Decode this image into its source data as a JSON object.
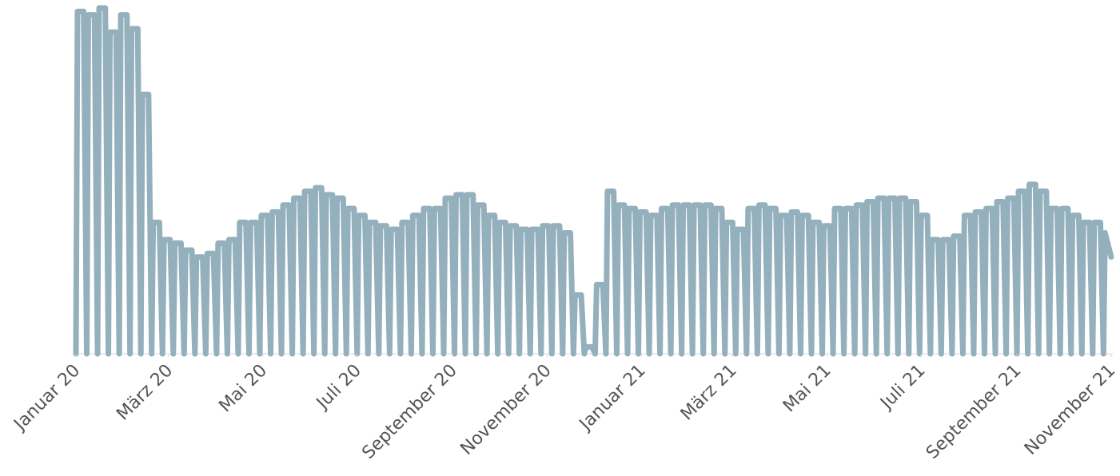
{
  "chart_data": {
    "type": "line",
    "x": [
      0,
      1,
      5,
      7,
      8,
      12,
      14,
      15,
      19,
      21,
      22,
      26,
      28,
      29,
      33,
      35,
      36,
      40,
      42,
      43,
      47,
      49,
      50,
      54,
      56,
      57,
      61,
      63,
      64,
      68,
      70,
      71,
      75,
      77,
      78,
      82,
      84,
      85,
      89,
      91,
      92,
      96,
      98,
      99,
      103,
      105,
      106,
      110,
      112,
      113,
      117,
      119,
      120,
      124,
      126,
      127,
      131,
      133,
      134,
      138,
      140,
      141,
      145,
      147,
      148,
      152,
      154,
      155,
      159,
      161,
      162,
      166,
      168,
      169,
      173,
      175,
      176,
      180,
      182,
      183,
      187,
      189,
      190,
      194,
      196,
      197,
      201,
      203,
      204,
      208,
      210,
      211,
      215,
      217,
      218,
      222,
      224,
      225,
      229,
      231,
      232,
      236,
      238,
      239,
      243,
      245,
      246,
      250,
      252,
      253,
      257,
      259,
      260,
      264,
      266,
      267,
      271,
      273,
      274,
      278,
      280,
      281,
      285,
      287,
      288,
      292,
      294,
      295,
      299,
      301,
      302,
      306,
      308,
      309,
      313,
      315,
      316,
      320,
      322,
      323,
      327,
      329,
      330,
      334,
      336,
      337,
      341,
      343,
      344,
      348,
      350,
      351,
      355,
      357,
      358,
      362,
      364,
      365,
      369,
      371,
      372,
      376,
      378,
      379,
      383,
      385,
      386,
      390,
      392,
      393,
      397,
      399,
      400,
      404,
      406,
      407,
      411,
      413,
      414,
      418,
      420,
      421,
      425,
      427,
      428,
      432,
      434,
      435,
      439,
      441,
      442,
      446,
      448,
      449,
      453,
      455,
      456,
      460,
      462,
      463,
      467,
      469,
      470,
      474,
      476,
      477,
      481,
      483,
      484,
      488,
      490,
      491,
      495,
      497,
      498,
      502,
      504,
      505,
      509,
      511,
      512,
      516,
      518,
      519,
      523,
      525,
      526,
      530,
      532,
      533,
      537,
      539,
      540,
      544,
      546,
      547,
      551,
      553,
      554,
      558,
      560,
      561,
      565,
      567,
      568,
      572,
      574,
      575,
      579,
      581,
      582,
      586,
      588,
      589,
      593,
      595,
      596,
      600,
      602,
      603,
      607,
      609,
      610,
      614,
      616,
      617,
      621,
      623,
      624,
      628,
      630,
      631,
      635,
      637,
      638,
      642,
      644,
      645,
      649,
      651,
      652,
      656,
      658,
      659,
      663,
      665,
      666,
      670
    ],
    "series": [
      {
        "color": "#94b0bd",
        "values": [
          0,
          99,
          99,
          0,
          98,
          98,
          0,
          100,
          100,
          0,
          93,
          93,
          0,
          98,
          98,
          0,
          94,
          94,
          0,
          75,
          75,
          0,
          38,
          38,
          0,
          33,
          33,
          0,
          32,
          32,
          0,
          30,
          30,
          0,
          28,
          28,
          0,
          29,
          29,
          0,
          32,
          32,
          0,
          33,
          33,
          0,
          38,
          38,
          0,
          38,
          38,
          0,
          40,
          40,
          0,
          41,
          41,
          0,
          43,
          43,
          0,
          45,
          45,
          0,
          47,
          47,
          0,
          48,
          48,
          0,
          46,
          46,
          0,
          45,
          45,
          0,
          42,
          42,
          0,
          40,
          40,
          0,
          38,
          38,
          0,
          37,
          37,
          0,
          36,
          36,
          0,
          38,
          38,
          0,
          40,
          40,
          0,
          42,
          42,
          0,
          42,
          42,
          0,
          45,
          45,
          0,
          46,
          46,
          0,
          46,
          46,
          0,
          43,
          43,
          0,
          40,
          40,
          0,
          38,
          38,
          0,
          37,
          37,
          0,
          36,
          36,
          0,
          36,
          36,
          0,
          37,
          37,
          0,
          37,
          37,
          0,
          35,
          35,
          0,
          17,
          17,
          0,
          2,
          2,
          0,
          20,
          20,
          0,
          47,
          47,
          0,
          43,
          43,
          0,
          42,
          42,
          0,
          41,
          41,
          0,
          40,
          40,
          0,
          42,
          42,
          0,
          43,
          43,
          0,
          43,
          43,
          0,
          43,
          43,
          0,
          43,
          43,
          0,
          42,
          42,
          0,
          38,
          38,
          0,
          36,
          36,
          0,
          42,
          42,
          0,
          43,
          43,
          0,
          42,
          42,
          0,
          40,
          40,
          0,
          41,
          41,
          0,
          40,
          40,
          0,
          38,
          38,
          0,
          37,
          37,
          0,
          42,
          42,
          0,
          42,
          42,
          0,
          43,
          43,
          0,
          44,
          44,
          0,
          45,
          45,
          0,
          45,
          45,
          0,
          45,
          45,
          0,
          44,
          44,
          0,
          40,
          40,
          0,
          33,
          33,
          0,
          33,
          33,
          0,
          34,
          34,
          0,
          40,
          40,
          0,
          41,
          41,
          0,
          42,
          42,
          0,
          44,
          44,
          0,
          45,
          45,
          0,
          47,
          47,
          0,
          49,
          49,
          0,
          47,
          47,
          0,
          42,
          42,
          0,
          42,
          42,
          0,
          40,
          40,
          0,
          38,
          38,
          0,
          38,
          38,
          0,
          35,
          28
        ]
      }
    ],
    "xlim": [
      0,
      670
    ],
    "ylim": [
      0,
      100
    ],
    "xticks": [
      {
        "value": 0,
        "label": "Januar 20"
      },
      {
        "value": 60,
        "label": "März 20"
      },
      {
        "value": 121,
        "label": "Mai 20"
      },
      {
        "value": 182,
        "label": "Juli 20"
      },
      {
        "value": 244,
        "label": "September 20"
      },
      {
        "value": 305,
        "label": "November 20"
      },
      {
        "value": 366,
        "label": "Januar 21"
      },
      {
        "value": 425,
        "label": "März 21"
      },
      {
        "value": 486,
        "label": "Mai 21"
      },
      {
        "value": 547,
        "label": "Juli 21"
      },
      {
        "value": 609,
        "label": "September 21"
      },
      {
        "value": 670,
        "label": "November 21"
      }
    ],
    "grid": false
  }
}
